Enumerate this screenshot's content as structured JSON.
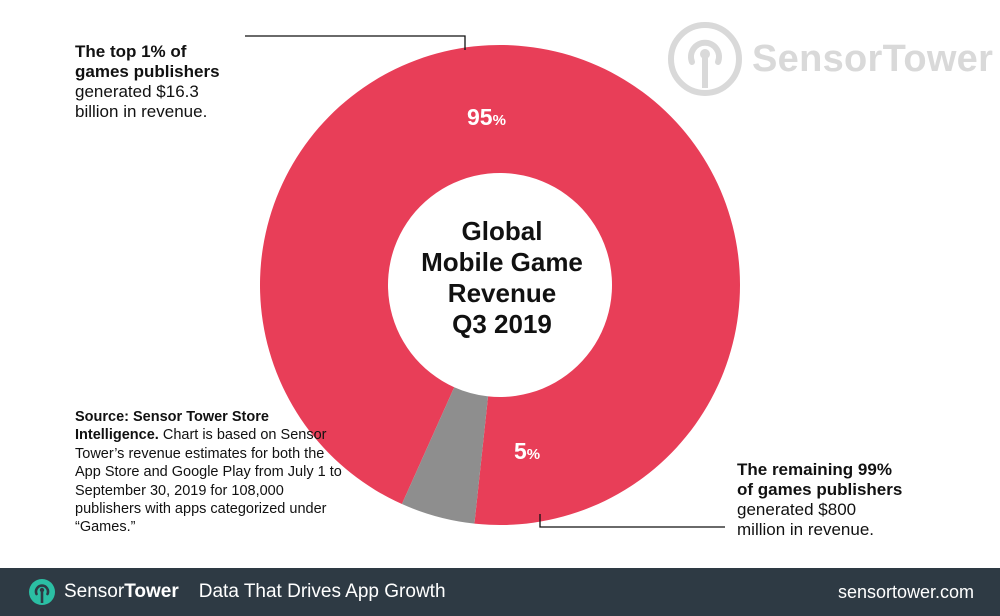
{
  "chart_data": {
    "type": "pie",
    "title": "Global Mobile Game Revenue Q3 2019",
    "title_lines": [
      "Global",
      "Mobile Game",
      "Revenue",
      "Q3 2019"
    ],
    "style": "donut",
    "slices": [
      {
        "label": "The top 1% of games publishers",
        "value": 95,
        "value_label": "95",
        "unit": "%",
        "color": "#e83e58"
      },
      {
        "label": "The remaining 99% of games publishers",
        "value": 5,
        "value_label": "5",
        "unit": "%",
        "color": "#8e8e8e"
      }
    ],
    "annotations": {
      "top": {
        "bold_lines": [
          "The top 1% of",
          "games publishers"
        ],
        "lines": [
          "generated $16.3",
          "billion in revenue."
        ]
      },
      "bottom": {
        "bold_lines": [
          "The remaining 99%",
          "of games publishers"
        ],
        "lines": [
          "generated $800",
          "million in revenue."
        ]
      }
    }
  },
  "source": {
    "bold": "Source: Sensor Tower Store Intelligence.",
    "text": "Chart is based on Sensor Tower’s revenue estimates for both the App Store and Google Play from July 1 to September 30, 2019 for 108,000 publishers with apps categorized under “Games.”"
  },
  "logo": {
    "name": "SensorTower",
    "icon": "sensor-tower-logo-icon",
    "color": "#d9d9d9"
  },
  "footer": {
    "brand_a": "Sensor",
    "brand_b": "Tower",
    "tagline": "Data That Drives App Growth",
    "url": "sensortower.com",
    "background": "#2e3a44",
    "icon_color": "#2bbfa4"
  }
}
